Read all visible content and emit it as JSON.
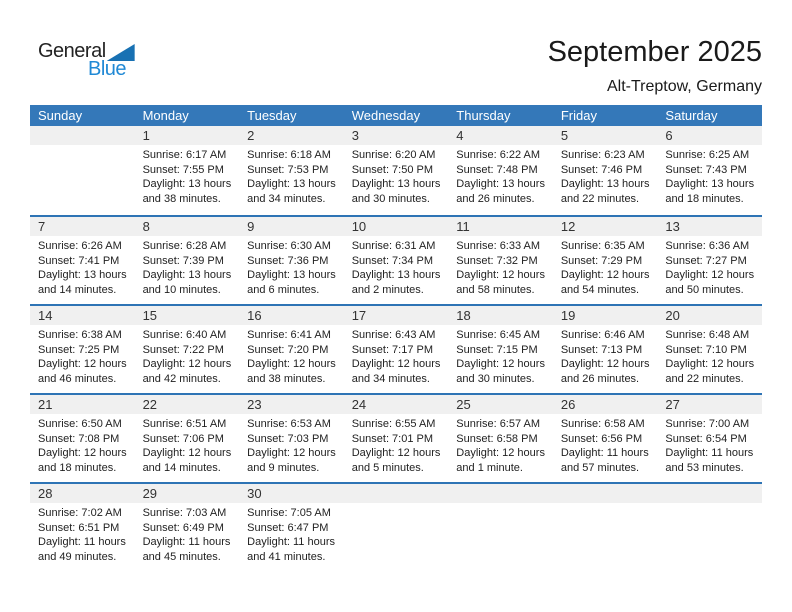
{
  "logo": {
    "general": "General",
    "blue": "Blue"
  },
  "header": {
    "title": "September 2025",
    "subtitle": "Alt-Treptow, Germany"
  },
  "colors": {
    "header_bg": "#3478b9",
    "row_line": "#2e74b5",
    "band_bg": "#f0f0f0",
    "logo_blue": "#2089d5",
    "logo_triangle": "#1871b3"
  },
  "weekday_headers": [
    "Sunday",
    "Monday",
    "Tuesday",
    "Wednesday",
    "Thursday",
    "Friday",
    "Saturday"
  ],
  "weeks": [
    [
      null,
      {
        "num": "1",
        "sunrise": "Sunrise: 6:17 AM",
        "sunset": "Sunset: 7:55 PM",
        "daylight1": "Daylight: 13 hours",
        "daylight2": "and 38 minutes."
      },
      {
        "num": "2",
        "sunrise": "Sunrise: 6:18 AM",
        "sunset": "Sunset: 7:53 PM",
        "daylight1": "Daylight: 13 hours",
        "daylight2": "and 34 minutes."
      },
      {
        "num": "3",
        "sunrise": "Sunrise: 6:20 AM",
        "sunset": "Sunset: 7:50 PM",
        "daylight1": "Daylight: 13 hours",
        "daylight2": "and 30 minutes."
      },
      {
        "num": "4",
        "sunrise": "Sunrise: 6:22 AM",
        "sunset": "Sunset: 7:48 PM",
        "daylight1": "Daylight: 13 hours",
        "daylight2": "and 26 minutes."
      },
      {
        "num": "5",
        "sunrise": "Sunrise: 6:23 AM",
        "sunset": "Sunset: 7:46 PM",
        "daylight1": "Daylight: 13 hours",
        "daylight2": "and 22 minutes."
      },
      {
        "num": "6",
        "sunrise": "Sunrise: 6:25 AM",
        "sunset": "Sunset: 7:43 PM",
        "daylight1": "Daylight: 13 hours",
        "daylight2": "and 18 minutes."
      }
    ],
    [
      {
        "num": "7",
        "sunrise": "Sunrise: 6:26 AM",
        "sunset": "Sunset: 7:41 PM",
        "daylight1": "Daylight: 13 hours",
        "daylight2": "and 14 minutes."
      },
      {
        "num": "8",
        "sunrise": "Sunrise: 6:28 AM",
        "sunset": "Sunset: 7:39 PM",
        "daylight1": "Daylight: 13 hours",
        "daylight2": "and 10 minutes."
      },
      {
        "num": "9",
        "sunrise": "Sunrise: 6:30 AM",
        "sunset": "Sunset: 7:36 PM",
        "daylight1": "Daylight: 13 hours",
        "daylight2": "and 6 minutes."
      },
      {
        "num": "10",
        "sunrise": "Sunrise: 6:31 AM",
        "sunset": "Sunset: 7:34 PM",
        "daylight1": "Daylight: 13 hours",
        "daylight2": "and 2 minutes."
      },
      {
        "num": "11",
        "sunrise": "Sunrise: 6:33 AM",
        "sunset": "Sunset: 7:32 PM",
        "daylight1": "Daylight: 12 hours",
        "daylight2": "and 58 minutes."
      },
      {
        "num": "12",
        "sunrise": "Sunrise: 6:35 AM",
        "sunset": "Sunset: 7:29 PM",
        "daylight1": "Daylight: 12 hours",
        "daylight2": "and 54 minutes."
      },
      {
        "num": "13",
        "sunrise": "Sunrise: 6:36 AM",
        "sunset": "Sunset: 7:27 PM",
        "daylight1": "Daylight: 12 hours",
        "daylight2": "and 50 minutes."
      }
    ],
    [
      {
        "num": "14",
        "sunrise": "Sunrise: 6:38 AM",
        "sunset": "Sunset: 7:25 PM",
        "daylight1": "Daylight: 12 hours",
        "daylight2": "and 46 minutes."
      },
      {
        "num": "15",
        "sunrise": "Sunrise: 6:40 AM",
        "sunset": "Sunset: 7:22 PM",
        "daylight1": "Daylight: 12 hours",
        "daylight2": "and 42 minutes."
      },
      {
        "num": "16",
        "sunrise": "Sunrise: 6:41 AM",
        "sunset": "Sunset: 7:20 PM",
        "daylight1": "Daylight: 12 hours",
        "daylight2": "and 38 minutes."
      },
      {
        "num": "17",
        "sunrise": "Sunrise: 6:43 AM",
        "sunset": "Sunset: 7:17 PM",
        "daylight1": "Daylight: 12 hours",
        "daylight2": "and 34 minutes."
      },
      {
        "num": "18",
        "sunrise": "Sunrise: 6:45 AM",
        "sunset": "Sunset: 7:15 PM",
        "daylight1": "Daylight: 12 hours",
        "daylight2": "and 30 minutes."
      },
      {
        "num": "19",
        "sunrise": "Sunrise: 6:46 AM",
        "sunset": "Sunset: 7:13 PM",
        "daylight1": "Daylight: 12 hours",
        "daylight2": "and 26 minutes."
      },
      {
        "num": "20",
        "sunrise": "Sunrise: 6:48 AM",
        "sunset": "Sunset: 7:10 PM",
        "daylight1": "Daylight: 12 hours",
        "daylight2": "and 22 minutes."
      }
    ],
    [
      {
        "num": "21",
        "sunrise": "Sunrise: 6:50 AM",
        "sunset": "Sunset: 7:08 PM",
        "daylight1": "Daylight: 12 hours",
        "daylight2": "and 18 minutes."
      },
      {
        "num": "22",
        "sunrise": "Sunrise: 6:51 AM",
        "sunset": "Sunset: 7:06 PM",
        "daylight1": "Daylight: 12 hours",
        "daylight2": "and 14 minutes."
      },
      {
        "num": "23",
        "sunrise": "Sunrise: 6:53 AM",
        "sunset": "Sunset: 7:03 PM",
        "daylight1": "Daylight: 12 hours",
        "daylight2": "and 9 minutes."
      },
      {
        "num": "24",
        "sunrise": "Sunrise: 6:55 AM",
        "sunset": "Sunset: 7:01 PM",
        "daylight1": "Daylight: 12 hours",
        "daylight2": "and 5 minutes."
      },
      {
        "num": "25",
        "sunrise": "Sunrise: 6:57 AM",
        "sunset": "Sunset: 6:58 PM",
        "daylight1": "Daylight: 12 hours",
        "daylight2": "and 1 minute."
      },
      {
        "num": "26",
        "sunrise": "Sunrise: 6:58 AM",
        "sunset": "Sunset: 6:56 PM",
        "daylight1": "Daylight: 11 hours",
        "daylight2": "and 57 minutes."
      },
      {
        "num": "27",
        "sunrise": "Sunrise: 7:00 AM",
        "sunset": "Sunset: 6:54 PM",
        "daylight1": "Daylight: 11 hours",
        "daylight2": "and 53 minutes."
      }
    ],
    [
      {
        "num": "28",
        "sunrise": "Sunrise: 7:02 AM",
        "sunset": "Sunset: 6:51 PM",
        "daylight1": "Daylight: 11 hours",
        "daylight2": "and 49 minutes."
      },
      {
        "num": "29",
        "sunrise": "Sunrise: 7:03 AM",
        "sunset": "Sunset: 6:49 PM",
        "daylight1": "Daylight: 11 hours",
        "daylight2": "and 45 minutes."
      },
      {
        "num": "30",
        "sunrise": "Sunrise: 7:05 AM",
        "sunset": "Sunset: 6:47 PM",
        "daylight1": "Daylight: 11 hours",
        "daylight2": "and 41 minutes."
      },
      null,
      null,
      null,
      null
    ]
  ]
}
